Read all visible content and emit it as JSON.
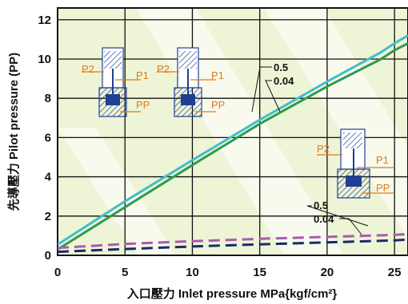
{
  "chart_data": {
    "type": "line",
    "title": "",
    "xlabel": "入口壓力  Inlet pressure MPa{kgf/cm²}",
    "ylabel": "先導壓力  Pilot pressure (PP)",
    "xlim": [
      0,
      26
    ],
    "ylim": [
      0,
      12.6
    ],
    "xticks": [
      "0",
      "5",
      "10",
      "15",
      "20",
      "25"
    ],
    "yticks": [
      "0",
      "2",
      "4",
      "6",
      "8",
      "10",
      "12"
    ],
    "grid": true,
    "series": [
      {
        "style": "solid",
        "color": "#3fbfc8",
        "x": [
          0,
          5,
          10,
          15,
          20,
          24,
          25,
          26
        ],
        "y": [
          0.55,
          2.75,
          4.85,
          6.9,
          8.85,
          10.35,
          10.8,
          11.2
        ]
      },
      {
        "style": "solid",
        "color": "#2f9a52",
        "x": [
          0,
          5,
          10,
          15,
          20,
          24,
          25,
          26
        ],
        "y": [
          0.3,
          2.45,
          4.6,
          6.7,
          8.6,
          10.0,
          10.45,
          10.8
        ]
      },
      {
        "style": "dashed",
        "color": "#a85ca8",
        "x": [
          0,
          5,
          10,
          15,
          20,
          25,
          26
        ],
        "y": [
          0.38,
          0.58,
          0.72,
          0.84,
          0.94,
          1.04,
          1.08
        ]
      },
      {
        "style": "dashed",
        "color": "#1a2a6a",
        "x": [
          0,
          5,
          10,
          15,
          20,
          25,
          26
        ],
        "y": [
          0.18,
          0.32,
          0.45,
          0.56,
          0.66,
          0.76,
          0.8
        ]
      }
    ],
    "annotations": [
      {
        "group": "solid",
        "labels": [
          "0.5",
          "0.04"
        ]
      },
      {
        "group": "dashed",
        "labels": [
          "0.5",
          "0.04"
        ]
      }
    ],
    "valve_ports": [
      "P2",
      "P1",
      "PP"
    ],
    "colors": {
      "plot_bg": "#eef4d6",
      "grid": "#111111",
      "port_label": "#e07a18",
      "valve_hatch": "#1f3f94"
    }
  }
}
